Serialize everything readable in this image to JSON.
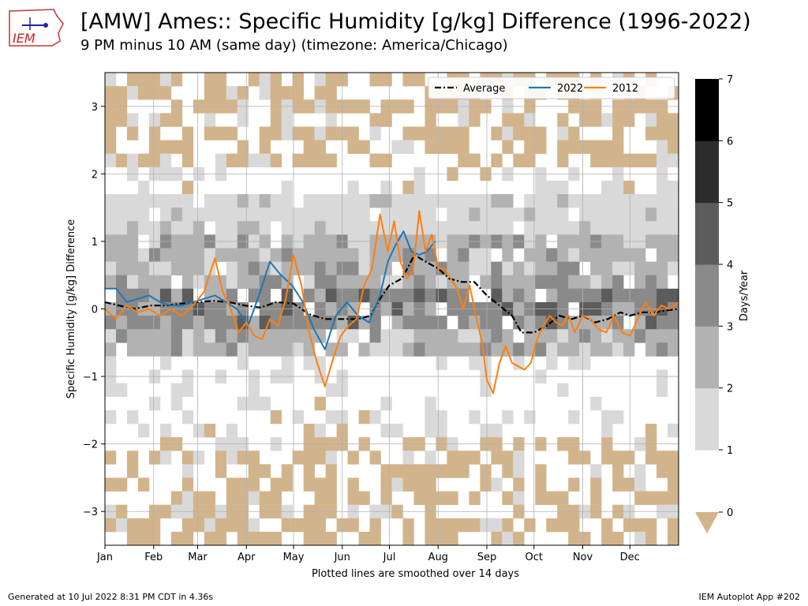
{
  "header": {
    "title": "[AMW] Ames:: Specific Humidity [g/kg] Difference (1996-2022)",
    "subtitle": "9 PM minus 10 AM (same day) (timezone: America/Chicago)",
    "logo_text": "IEM"
  },
  "footer": {
    "generated": "Generated at 10 Jul 2022 8:31 PM CDT in 4.36s",
    "app": "IEM Autoplot App #202"
  },
  "chart_data": {
    "type": "line",
    "title": "[AMW] Ames:: Specific Humidity [g/kg] Difference (1996-2022)",
    "subtitle": "9 PM minus 10 AM (same day) (timezone: America/Chicago)",
    "xlabel": "Plotted lines are smoothed over 14 days",
    "ylabel": "Specific Humidity [g/kg]  Difference",
    "xlim": [
      1,
      366
    ],
    "ylim": [
      -3.5,
      3.5
    ],
    "grid": true,
    "legend_position": "top-right",
    "x_ticks": [
      {
        "label": "Jan",
        "day": 1
      },
      {
        "label": "Feb",
        "day": 32
      },
      {
        "label": "Mar",
        "day": 60
      },
      {
        "label": "Apr",
        "day": 91
      },
      {
        "label": "May",
        "day": 121
      },
      {
        "label": "Jun",
        "day": 152
      },
      {
        "label": "Jul",
        "day": 182
      },
      {
        "label": "Aug",
        "day": 213
      },
      {
        "label": "Sep",
        "day": 244
      },
      {
        "label": "Oct",
        "day": 274
      },
      {
        "label": "Nov",
        "day": 305
      },
      {
        "label": "Dec",
        "day": 335
      }
    ],
    "y_ticks": [
      {
        "label": "3",
        "value": 3
      },
      {
        "label": "2",
        "value": 2
      },
      {
        "label": "1",
        "value": 1
      },
      {
        "label": "0",
        "value": 0
      },
      {
        "label": "−1",
        "value": -1
      },
      {
        "label": "−2",
        "value": -2
      },
      {
        "label": "−3",
        "value": -3
      }
    ],
    "series": [
      {
        "name": "Average",
        "color": "#000000",
        "style": "dashdot",
        "x": [
          1,
          10,
          20,
          30,
          40,
          50,
          60,
          70,
          80,
          90,
          100,
          110,
          121,
          131,
          141,
          152,
          162,
          170,
          176,
          182,
          190,
          198,
          205,
          213,
          220,
          228,
          236,
          244,
          252,
          260,
          266,
          274,
          282,
          290,
          298,
          305,
          313,
          321,
          329,
          335,
          343,
          351,
          359,
          366
        ],
        "y": [
          0.1,
          0.05,
          0.0,
          0.05,
          0.05,
          0.08,
          0.1,
          0.12,
          0.1,
          0.05,
          0.02,
          0.1,
          0.08,
          -0.08,
          -0.15,
          -0.15,
          -0.15,
          -0.1,
          0.15,
          0.35,
          0.45,
          0.8,
          0.7,
          0.6,
          0.45,
          0.4,
          0.4,
          0.2,
          0.05,
          -0.1,
          -0.35,
          -0.35,
          -0.25,
          -0.1,
          -0.15,
          -0.1,
          -0.2,
          -0.15,
          -0.05,
          -0.1,
          -0.05,
          -0.05,
          -0.02,
          0.0
        ]
      },
      {
        "name": "2022",
        "color": "#1f77b4",
        "style": "solid",
        "x": [
          1,
          8,
          15,
          22,
          29,
          36,
          43,
          50,
          57,
          64,
          71,
          78,
          85,
          92,
          99,
          106,
          113,
          120,
          127,
          134,
          141,
          148,
          155,
          162,
          169,
          176,
          181,
          186,
          191,
          196,
          201,
          206,
          211
        ],
        "y": [
          0.3,
          0.3,
          0.1,
          0.15,
          0.2,
          0.1,
          0.05,
          0.05,
          0.1,
          0.15,
          0.2,
          0.1,
          0.0,
          -0.25,
          0.2,
          0.7,
          0.5,
          0.35,
          0.1,
          -0.3,
          -0.6,
          -0.1,
          0.1,
          -0.1,
          -0.2,
          0.2,
          0.7,
          0.95,
          1.15,
          0.85,
          0.8,
          0.85,
          1.0
        ]
      },
      {
        "name": "2012",
        "color": "#ff7f0e",
        "style": "solid",
        "x": [
          1,
          8,
          15,
          22,
          29,
          36,
          43,
          50,
          57,
          64,
          71,
          76,
          81,
          86,
          91,
          96,
          101,
          106,
          111,
          116,
          121,
          126,
          131,
          136,
          141,
          146,
          151,
          156,
          161,
          166,
          171,
          176,
          181,
          185,
          189,
          193,
          197,
          201,
          205,
          209,
          213,
          217,
          221,
          225,
          229,
          233,
          237,
          241,
          244,
          248,
          252,
          256,
          260,
          264,
          268,
          272,
          276,
          280,
          284,
          288,
          292,
          296,
          300,
          305,
          310,
          315,
          320,
          325,
          330,
          335,
          340,
          345,
          350,
          355,
          360,
          366
        ],
        "y": [
          0.0,
          -0.15,
          0.05,
          -0.05,
          0.0,
          -0.1,
          0.0,
          -0.1,
          0.05,
          0.25,
          0.75,
          0.25,
          0.0,
          -0.35,
          -0.2,
          -0.4,
          -0.45,
          -0.15,
          -0.25,
          0.15,
          0.8,
          0.35,
          -0.35,
          -0.8,
          -1.15,
          -0.75,
          -0.4,
          -0.25,
          -0.15,
          0.35,
          0.6,
          1.4,
          0.85,
          1.3,
          0.7,
          0.45,
          0.55,
          1.45,
          0.85,
          1.1,
          0.6,
          0.6,
          0.45,
          0.3,
          0.0,
          0.35,
          -0.1,
          -0.5,
          -1.05,
          -1.25,
          -0.8,
          -0.55,
          -0.8,
          -0.85,
          -0.9,
          -0.8,
          -0.45,
          -0.25,
          -0.1,
          -0.2,
          -0.25,
          -0.1,
          -0.35,
          -0.1,
          -0.15,
          -0.3,
          -0.35,
          -0.1,
          -0.35,
          -0.4,
          -0.15,
          0.1,
          -0.1,
          0.05,
          0.0,
          0.1
        ]
      }
    ],
    "heatmap": {
      "type": "heatmap",
      "description_note": "daily count of years (days/year) per 0.2 g/kg bin; tan = zero",
      "shading": [
        {
          "y_low": -0.4,
          "y_high": 0.4,
          "level": 3
        },
        {
          "y_low": -0.6,
          "y_high": -0.4,
          "level": 2
        },
        {
          "y_low": 0.4,
          "y_high": 1.0,
          "level": 2
        },
        {
          "y_low": -0.8,
          "y_high": -0.6,
          "level": 1
        },
        {
          "y_low": 1.0,
          "y_high": 1.6,
          "level": 1
        }
      ]
    },
    "colorbar": {
      "label": "Days/Year",
      "ticks": [
        "0",
        "1",
        "2",
        "3",
        "4",
        "5",
        "6",
        "7"
      ],
      "levels": [
        {
          "from": 1,
          "to": 2,
          "color": "#d9d9d9"
        },
        {
          "from": 2,
          "to": 3,
          "color": "#b2b2b2"
        },
        {
          "from": 3,
          "to": 4,
          "color": "#8a8a8a"
        },
        {
          "from": 4,
          "to": 5,
          "color": "#5c5c5c"
        },
        {
          "from": 5,
          "to": 6,
          "color": "#2c2c2c"
        },
        {
          "from": 6,
          "to": 7,
          "color": "#000000"
        }
      ],
      "under_color": "#d2b48c"
    },
    "legend": [
      "Average",
      "2022",
      "2012"
    ]
  }
}
